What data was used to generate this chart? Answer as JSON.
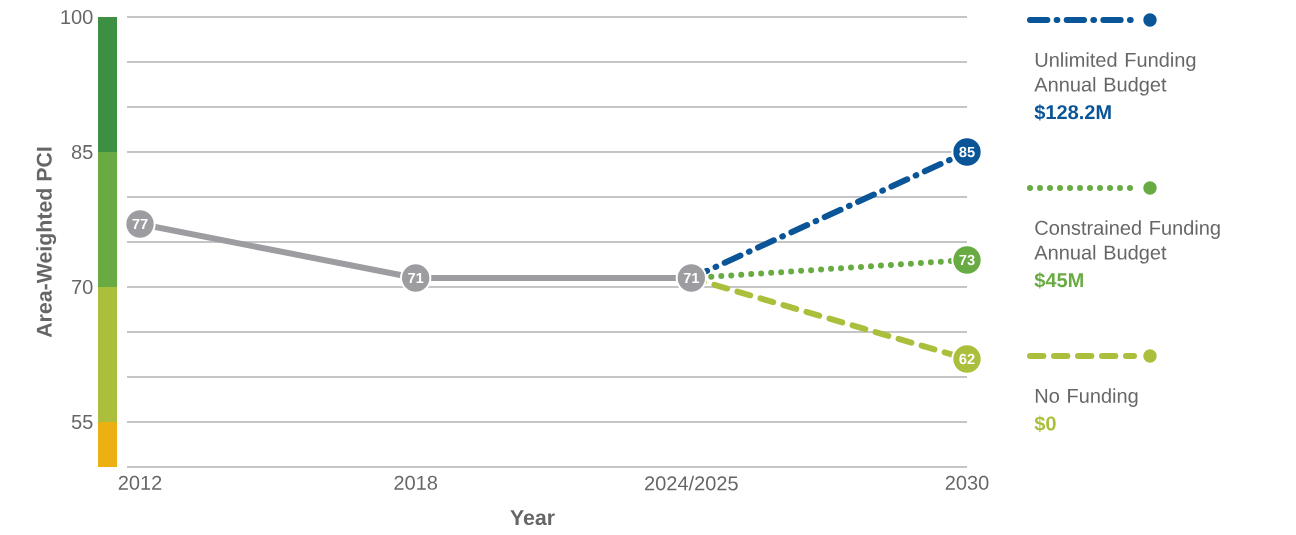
{
  "chart_data": {
    "type": "line",
    "xlabel": "Year",
    "ylabel": "Area-Weighted PCI",
    "categories": [
      "2012",
      "2018",
      "2024/2025",
      "2030"
    ],
    "series": [
      {
        "color": "#9d9ca1",
        "line_style": "solid",
        "values": [
          77,
          71,
          71,
          null
        ],
        "value_labels": [
          "77",
          "71",
          "71",
          null
        ]
      },
      {
        "name": "Unlimited Funding Annual Budget",
        "color": "#0a5597",
        "line_style": "dashdot",
        "values": [
          null,
          null,
          71,
          85
        ],
        "value_labels": [
          null,
          null,
          null,
          "85"
        ]
      },
      {
        "name": "Constrained Funding Annual Budget",
        "color": "#69ab43",
        "line_style": "dotted",
        "values": [
          null,
          null,
          71,
          73
        ],
        "value_labels": [
          null,
          null,
          null,
          "73"
        ]
      },
      {
        "name": "No Funding",
        "color": "#acbf3d",
        "line_style": "dashed",
        "values": [
          null,
          null,
          71,
          62
        ],
        "value_labels": [
          null,
          null,
          null,
          "62"
        ]
      }
    ],
    "annotations": [
      "$128.2M",
      "$45M",
      "$0"
    ],
    "ylim": [
      50,
      100
    ],
    "yticks": [
      {
        "value": 50,
        "label": null
      },
      55,
      {
        "value": 60,
        "label": null
      },
      {
        "value": 65,
        "label": null
      },
      70,
      {
        "value": 75,
        "label": null
      },
      {
        "value": 80,
        "label": null
      },
      85,
      {
        "value": 90,
        "label": null
      },
      {
        "value": 95,
        "label": null
      },
      100
    ],
    "grid": "y",
    "legend": "right",
    "marker": "circle"
  }
}
